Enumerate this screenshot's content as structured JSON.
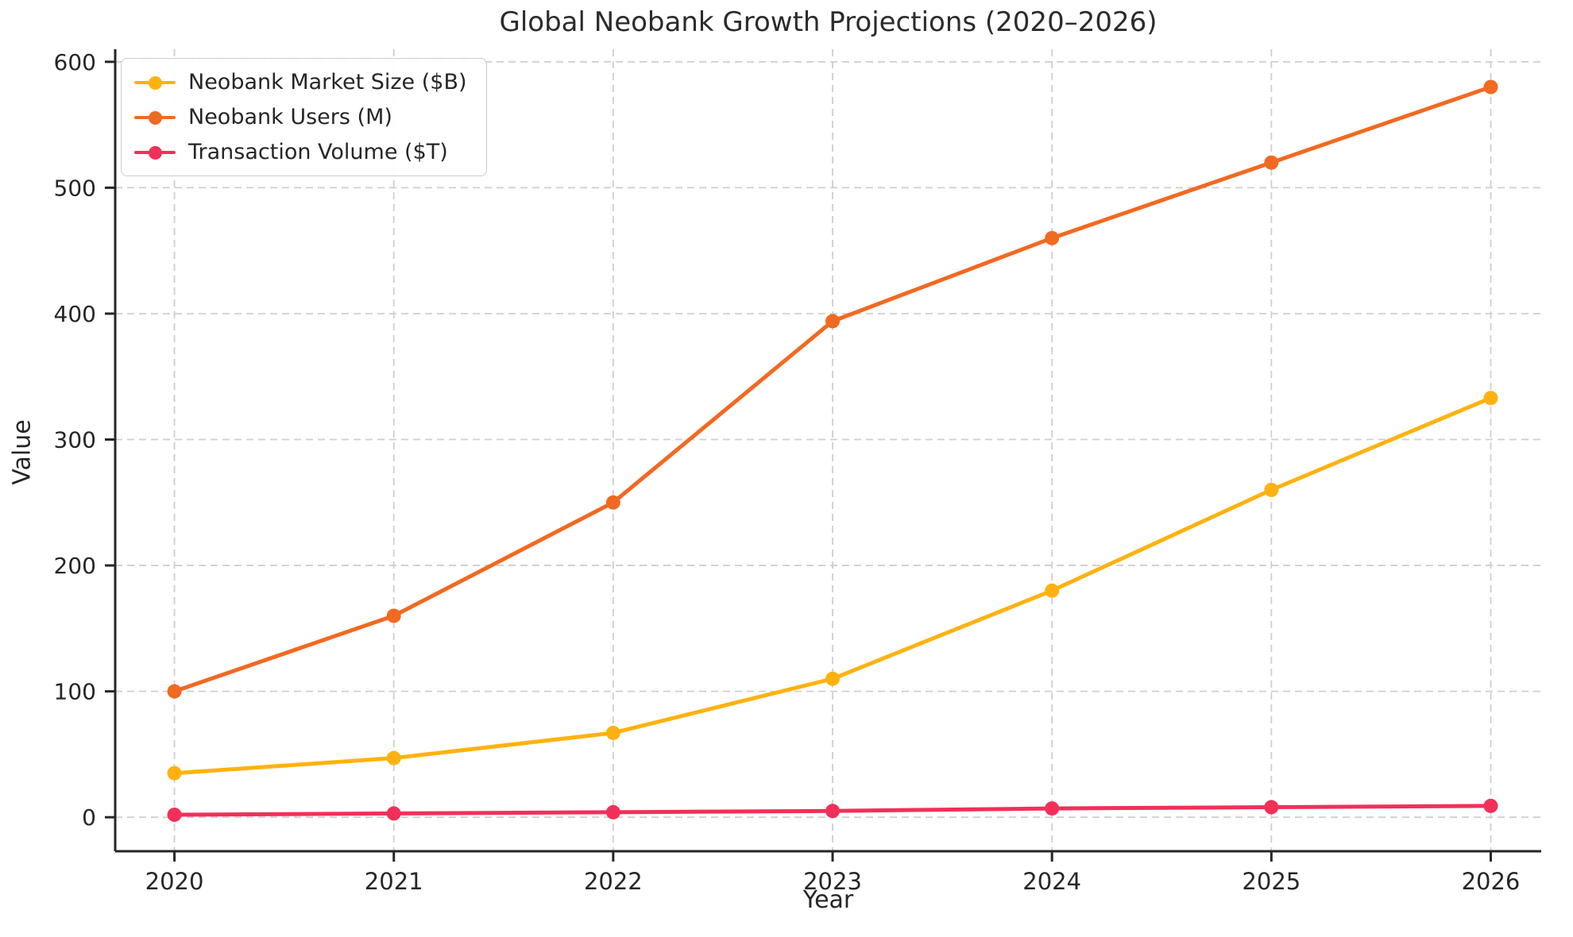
{
  "chart_data": {
    "type": "line",
    "title": "Global Neobank Growth Projections (2020–2026)",
    "xlabel": "Year",
    "ylabel": "Value",
    "x": [
      2020,
      2021,
      2022,
      2023,
      2024,
      2025,
      2026
    ],
    "series": [
      {
        "name": "Neobank Market Size ($B)",
        "color": "#FFB20F",
        "values": [
          35,
          47,
          67,
          110,
          180,
          260,
          333
        ]
      },
      {
        "name": "Neobank Users (M)",
        "color": "#F26921",
        "values": [
          100,
          160,
          250,
          394,
          460,
          520,
          580
        ]
      },
      {
        "name": "Transaction Volume ($T)",
        "color": "#F1305A",
        "values": [
          2,
          3,
          4,
          5,
          7,
          8,
          9
        ]
      }
    ],
    "axes": {
      "xlim": [
        2019.73,
        2026.23
      ],
      "ylim": [
        -27,
        610
      ],
      "yticks": [
        0,
        100,
        200,
        300,
        400,
        500,
        600
      ],
      "xticks": [
        2020,
        2021,
        2022,
        2023,
        2024,
        2025,
        2026
      ],
      "grid": true,
      "grid_style": "dashed",
      "legend_position": "upper left"
    },
    "colors": {
      "grid": "#cfcfcf",
      "spine": "#262626",
      "tick_label": "#262626",
      "title": "#2b2b2b"
    }
  }
}
